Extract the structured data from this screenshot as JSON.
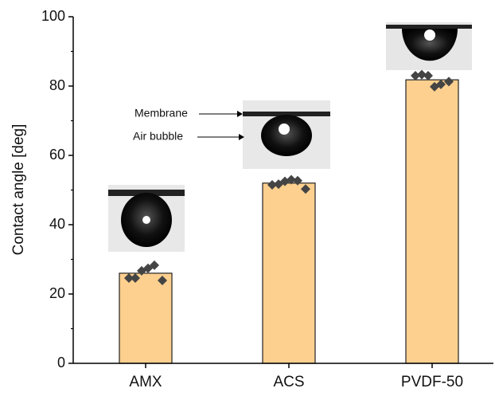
{
  "chart_data": {
    "type": "bar",
    "ylabel": "Contact angle [deg]",
    "categories": [
      "AMX",
      "ACS",
      "PVDF-50"
    ],
    "values": [
      26,
      52,
      81.8
    ],
    "color": "#fdd08f",
    "points": [
      [
        24.6,
        24.6,
        26.7,
        27.4,
        28.3,
        23.9
      ],
      [
        51.5,
        51.7,
        52.5,
        53,
        52.7,
        50.3
      ],
      [
        83,
        83.3,
        83,
        79.8,
        80.5,
        81.3
      ]
    ],
    "point_color": "#444444",
    "ylim": [
      0,
      100
    ],
    "yticks": [
      0,
      20,
      40,
      60,
      80,
      100
    ],
    "minor_yticks": [
      10,
      30,
      50,
      70,
      90
    ],
    "annotations": [
      "Membrane",
      "Air bubble"
    ]
  }
}
